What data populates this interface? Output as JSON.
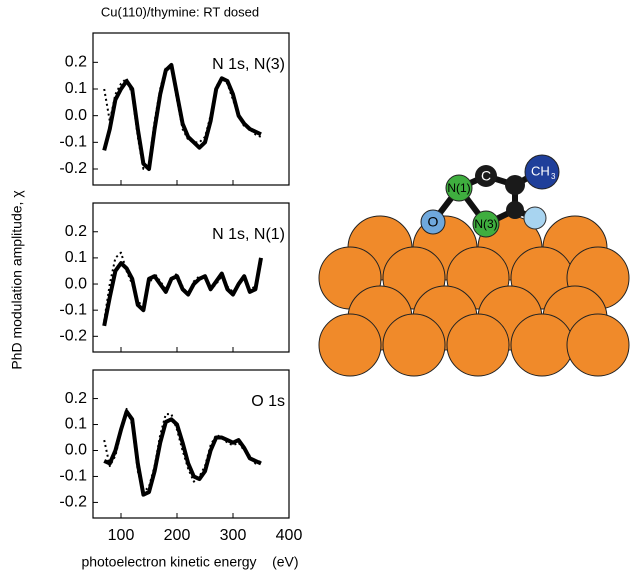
{
  "ylabel": "PhD modulation amplitude, χ",
  "molecule_labels": {
    "o": "O",
    "n1": "N(1)",
    "c": "C",
    "ch3": "CH",
    "ch3_sub": "3",
    "n3": "N(3)"
  },
  "chart_data": [
    {
      "type": "line",
      "title": "Cu(110)/thymine: RT dosed",
      "annotation": "N 1s, N(3)",
      "x": [
        70,
        80,
        90,
        100,
        110,
        120,
        130,
        140,
        150,
        160,
        170,
        180,
        190,
        200,
        210,
        220,
        230,
        240,
        250,
        260,
        270,
        280,
        290,
        300,
        310,
        320,
        330,
        340,
        350
      ],
      "series": [
        {
          "color": "#000000",
          "style": "solid",
          "values": [
            -0.13,
            -0.05,
            0.06,
            0.1,
            0.13,
            0.1,
            -0.05,
            -0.18,
            -0.2,
            -0.05,
            0.08,
            0.17,
            0.19,
            0.08,
            -0.03,
            -0.08,
            -0.1,
            -0.12,
            -0.1,
            -0.02,
            0.1,
            0.14,
            0.13,
            0.08,
            0.0,
            -0.03,
            -0.05,
            -0.06,
            -0.07
          ]
        },
        {
          "color": "#000000",
          "style": "dotted",
          "values": [
            0.1,
            -0.02,
            0.08,
            0.12,
            0.14,
            0.08,
            -0.08,
            -0.2,
            -0.18,
            -0.02,
            0.1,
            0.18,
            0.18,
            0.06,
            -0.05,
            -0.09,
            -0.1,
            -0.1,
            -0.08,
            0.0,
            0.11,
            0.14,
            0.12,
            0.06,
            0.0,
            -0.04,
            -0.05,
            -0.07,
            -0.08
          ]
        }
      ],
      "xlim": [
        50,
        400
      ],
      "xticks": [
        100,
        200,
        300,
        400
      ],
      "show_xtick_labels": false,
      "ylim": [
        -0.26,
        0.31
      ],
      "yticks": [
        0.2,
        0.1,
        {
          "value": 0,
          "label": "0.0"
        },
        -0.1,
        -0.2
      ]
    },
    {
      "type": "line",
      "annotation": "N 1s, N(1)",
      "x": [
        70,
        80,
        90,
        100,
        110,
        120,
        130,
        140,
        150,
        160,
        170,
        180,
        190,
        200,
        210,
        220,
        230,
        240,
        250,
        260,
        270,
        280,
        290,
        300,
        310,
        320,
        330,
        340,
        350
      ],
      "series": [
        {
          "color": "#000000",
          "style": "solid",
          "values": [
            -0.16,
            -0.05,
            0.05,
            0.08,
            0.06,
            0.02,
            -0.08,
            -0.1,
            0.02,
            0.03,
            0.0,
            -0.03,
            0.02,
            0.03,
            -0.02,
            -0.04,
            0.0,
            0.02,
            0.03,
            -0.02,
            0.01,
            0.04,
            -0.02,
            -0.04,
            0.0,
            0.03,
            -0.03,
            -0.02,
            0.1
          ]
        },
        {
          "color": "#000000",
          "style": "dotted",
          "values": [
            -0.14,
            0.0,
            0.1,
            0.12,
            0.05,
            0.0,
            -0.07,
            -0.08,
            0.0,
            0.04,
            0.01,
            -0.02,
            0.02,
            0.04,
            -0.01,
            -0.04,
            0.01,
            0.03,
            0.02,
            -0.02,
            0.0,
            0.03,
            -0.01,
            -0.03,
            0.0,
            0.02,
            -0.02,
            -0.01,
            0.08
          ]
        }
      ],
      "xlim": [
        50,
        400
      ],
      "xticks": [
        100,
        200,
        300,
        400
      ],
      "show_xtick_labels": false,
      "ylim": [
        -0.26,
        0.31
      ],
      "yticks": [
        0.2,
        0.1,
        {
          "value": 0,
          "label": "0.0"
        },
        -0.1,
        -0.2
      ]
    },
    {
      "type": "line",
      "annotation": "O 1s",
      "xlabel": "photoelectron kinetic energy    (eV)",
      "x": [
        70,
        80,
        90,
        100,
        110,
        120,
        130,
        140,
        150,
        160,
        170,
        180,
        190,
        200,
        210,
        220,
        230,
        240,
        250,
        260,
        270,
        280,
        290,
        300,
        310,
        320,
        330,
        340,
        350
      ],
      "series": [
        {
          "color": "#000000",
          "style": "solid",
          "values": [
            -0.04,
            -0.05,
            0.0,
            0.08,
            0.15,
            0.12,
            -0.05,
            -0.17,
            -0.16,
            -0.08,
            0.03,
            0.11,
            0.12,
            0.1,
            0.03,
            -0.05,
            -0.1,
            -0.11,
            -0.08,
            0.0,
            0.05,
            0.05,
            0.04,
            0.03,
            0.04,
            0.01,
            -0.03,
            -0.04,
            -0.05
          ]
        },
        {
          "color": "#000000",
          "style": "dotted",
          "values": [
            0.04,
            -0.06,
            -0.02,
            0.07,
            0.16,
            0.1,
            -0.08,
            -0.16,
            -0.14,
            -0.06,
            0.06,
            0.14,
            0.14,
            0.08,
            0.0,
            -0.07,
            -0.12,
            -0.1,
            -0.06,
            0.02,
            0.06,
            0.05,
            0.03,
            0.02,
            0.03,
            0.0,
            -0.02,
            -0.05,
            -0.04
          ]
        }
      ],
      "xlim": [
        50,
        400
      ],
      "xticks": [
        100,
        200,
        300,
        400
      ],
      "show_xtick_labels": true,
      "ylim": [
        -0.26,
        0.31
      ],
      "yticks": [
        0.2,
        0.1,
        {
          "value": 0,
          "label": "0.0"
        },
        -0.1,
        -0.2
      ]
    }
  ]
}
